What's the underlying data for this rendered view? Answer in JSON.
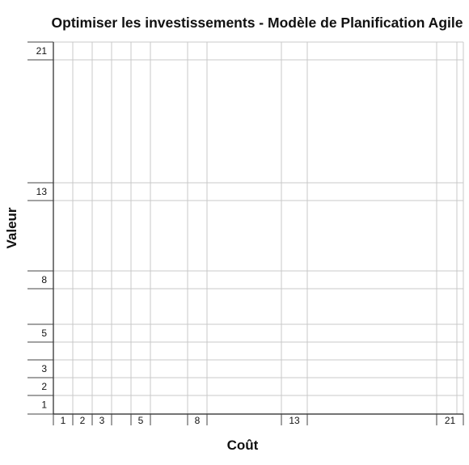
{
  "chart_data": {
    "type": "scatter",
    "title": "Optimiser les investissements - Modèle de Planification Agile",
    "xlabel": "Coût",
    "ylabel": "Valeur",
    "x_ticks": [
      1,
      2,
      3,
      4,
      5,
      6,
      8,
      13,
      21
    ],
    "x_tick_labels": [
      "1",
      "2",
      "3",
      "",
      "5",
      "",
      "8",
      "13",
      "21"
    ],
    "y_ticks": [
      1,
      2,
      3,
      4,
      5,
      6,
      8,
      13,
      21
    ],
    "y_tick_labels": [
      "1",
      "2",
      "3",
      "",
      "5",
      "",
      "8",
      "13",
      "21"
    ],
    "xlim": [
      0,
      22
    ],
    "ylim": [
      0,
      21
    ],
    "grid": true,
    "series": []
  }
}
